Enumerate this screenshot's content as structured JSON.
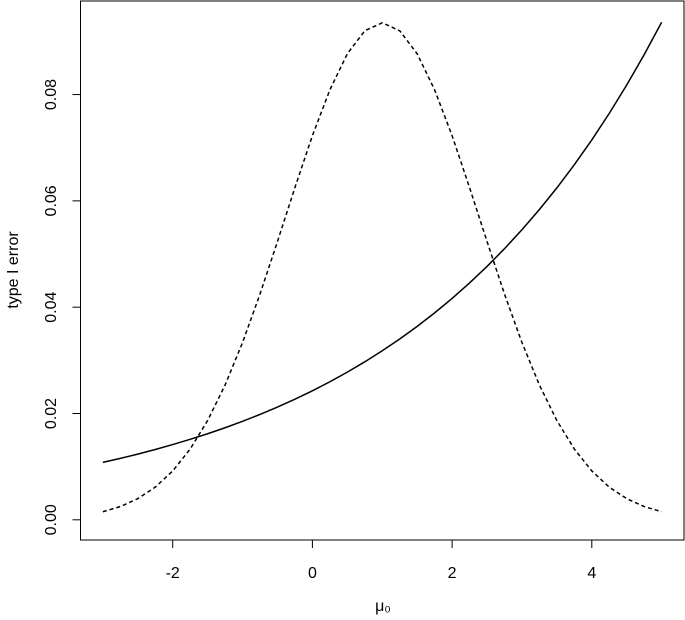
{
  "chart_data": {
    "type": "line",
    "xlabel": "μ₀",
    "ylabel": "type I error",
    "x": [
      -3,
      -2.75,
      -2.5,
      -2.25,
      -2,
      -1.75,
      -1.5,
      -1.25,
      -1,
      -0.75,
      -0.5,
      -0.25,
      0,
      0.25,
      0.5,
      0.75,
      1,
      1.25,
      1.5,
      1.75,
      2,
      2.25,
      2.5,
      2.75,
      3,
      3.25,
      3.5,
      3.75,
      4,
      4.25,
      4.5,
      4.75,
      5
    ],
    "series": [
      {
        "color": "#000000",
        "dash": "solid",
        "values": [
          0.0108,
          0.01155,
          0.01236,
          0.01322,
          0.01415,
          0.01514,
          0.01619,
          0.01732,
          0.01853,
          0.01983,
          0.02121,
          0.02269,
          0.02427,
          0.02597,
          0.02778,
          0.02972,
          0.0318,
          0.03402,
          0.03639,
          0.03893,
          0.04165,
          0.04456,
          0.04767,
          0.051,
          0.05456,
          0.05837,
          0.06244,
          0.0668,
          0.07147,
          0.07646,
          0.08179,
          0.08751,
          0.09361
        ]
      },
      {
        "color": "#000000",
        "dash": "dashed",
        "values": [
          0.00151,
          0.00249,
          0.00398,
          0.00614,
          0.00919,
          0.01331,
          0.01867,
          0.02536,
          0.03335,
          0.04247,
          0.05236,
          0.0625,
          0.07226,
          0.08088,
          0.08767,
          0.092,
          0.0935,
          0.092,
          0.08767,
          0.08088,
          0.07226,
          0.0625,
          0.05236,
          0.04247,
          0.03335,
          0.02536,
          0.01867,
          0.01331,
          0.00919,
          0.00614,
          0.00398,
          0.00249,
          0.00151
        ]
      }
    ],
    "xlim": [
      -3.32,
      5.32
    ],
    "ylim": [
      -0.0038,
      0.0976
    ],
    "xticks": [
      -2,
      0,
      2,
      4
    ],
    "yticks": [
      {
        "value": 0,
        "label": "0.00"
      },
      0.02,
      0.04,
      0.06,
      0.08
    ]
  }
}
